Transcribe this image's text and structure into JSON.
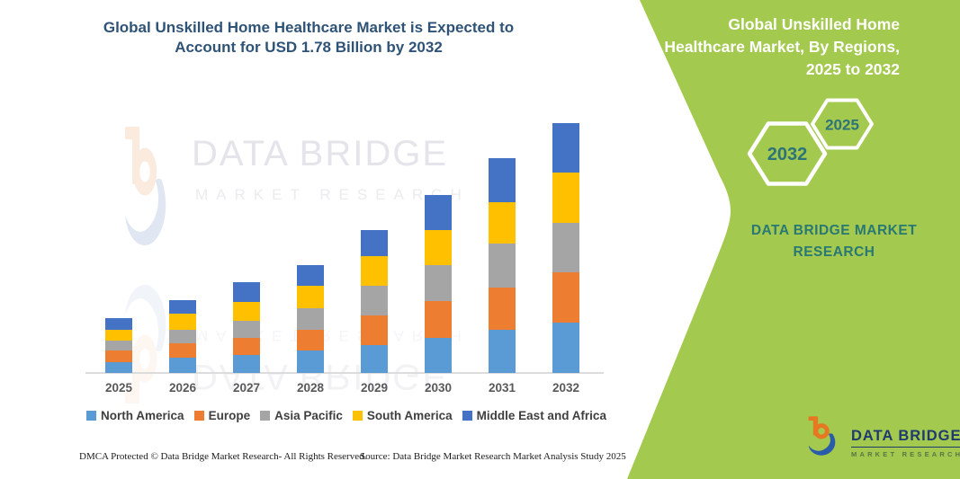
{
  "header": {
    "title": "Global Unskilled Home Healthcare Market is Expected to Account for USD 1.78 Billion by 2032"
  },
  "watermark": {
    "brand_top": "DATA BRIDGE",
    "brand_bottom": "MARKET RESEARCH"
  },
  "chart_data": {
    "type": "bar",
    "stacked": true,
    "title": "Global Unskilled Home Healthcare Market is Expected to Account for USD 1.78 Billion by 2032",
    "unit": "USD Billion",
    "categories": [
      "2025",
      "2026",
      "2027",
      "2028",
      "2029",
      "2030",
      "2031",
      "2032"
    ],
    "series": [
      {
        "name": "North America",
        "color": "#5b9bd5",
        "values": [
          0.08,
          0.11,
          0.13,
          0.16,
          0.2,
          0.25,
          0.31,
          0.36
        ]
      },
      {
        "name": "Europe",
        "color": "#ed7d31",
        "values": [
          0.08,
          0.1,
          0.12,
          0.15,
          0.21,
          0.26,
          0.3,
          0.36
        ]
      },
      {
        "name": "Asia Pacific",
        "color": "#a5a5a5",
        "values": [
          0.07,
          0.1,
          0.12,
          0.15,
          0.21,
          0.26,
          0.31,
          0.35
        ]
      },
      {
        "name": "South America",
        "color": "#ffc000",
        "values": [
          0.08,
          0.11,
          0.14,
          0.16,
          0.21,
          0.25,
          0.3,
          0.36
        ]
      },
      {
        "name": "Middle East and Africa",
        "color": "#4472c4",
        "values": [
          0.08,
          0.1,
          0.14,
          0.15,
          0.19,
          0.25,
          0.31,
          0.35
        ]
      }
    ],
    "totals": [
      0.39,
      0.52,
      0.65,
      0.77,
      1.02,
      1.27,
      1.53,
      1.78
    ],
    "ylim": [
      0,
      1.9
    ],
    "grid": false,
    "legend_position": "bottom",
    "xaxis_line_color": "#dcdcdc"
  },
  "side_panel": {
    "title": "Global Unskilled Home Healthcare Market, By Regions, 2025 to 2032",
    "background": "#a3c94f",
    "hexagons": [
      {
        "label": "2032"
      },
      {
        "label": "2025"
      }
    ],
    "brand": "DATA BRIDGE MARKET RESEARCH"
  },
  "corner_logo": {
    "line1": "DATA BRIDGE",
    "line2": "MARKET RESEARCH"
  },
  "footer": {
    "dmca": "DMCA Protected © Data Bridge Market Research- All Rights Reserved.",
    "source": "Source: Data Bridge Market Research Market Analysis Study 2025"
  },
  "colors": {
    "title_blue": "#2f5377",
    "teal_text": "#2a7873",
    "panel_green": "#a3c94f",
    "logo_orange": "#e87722",
    "logo_blue": "#2a5caa"
  }
}
